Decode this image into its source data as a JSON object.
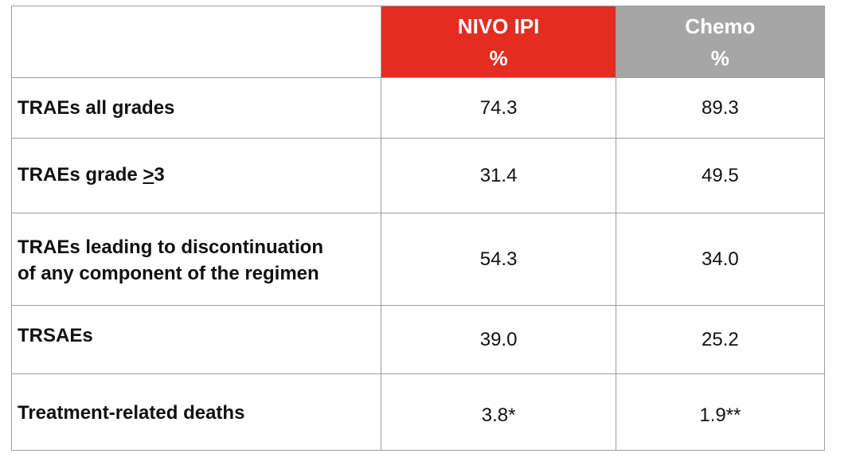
{
  "header": {
    "nivo_title": "NIVO IPI",
    "nivo_unit": "%",
    "chemo_title": "Chemo",
    "chemo_unit": "%"
  },
  "colors": {
    "nivo_header_bg": "#e32d21",
    "chemo_header_bg": "#a6a6a6",
    "header_text": "#ffffff",
    "border": "#9e9e9e"
  },
  "rows": [
    {
      "label": "TRAEs all grades",
      "nivo": "74.3",
      "chemo": "89.3"
    },
    {
      "label_prefix": "TRAEs grade ",
      "label_symbol": ">",
      "label_suffix": "3",
      "nivo": "31.4",
      "chemo": "49.5"
    },
    {
      "label_line1": "TRAEs leading to discontinuation",
      "label_line2": "of any component of the regimen",
      "nivo": "54.3",
      "chemo": "34.0"
    },
    {
      "label": "TRSAEs",
      "nivo": "39.0",
      "chemo": "25.2"
    },
    {
      "label": "Treatment-related deaths",
      "nivo": "3.8*",
      "chemo": "1.9**"
    }
  ]
}
